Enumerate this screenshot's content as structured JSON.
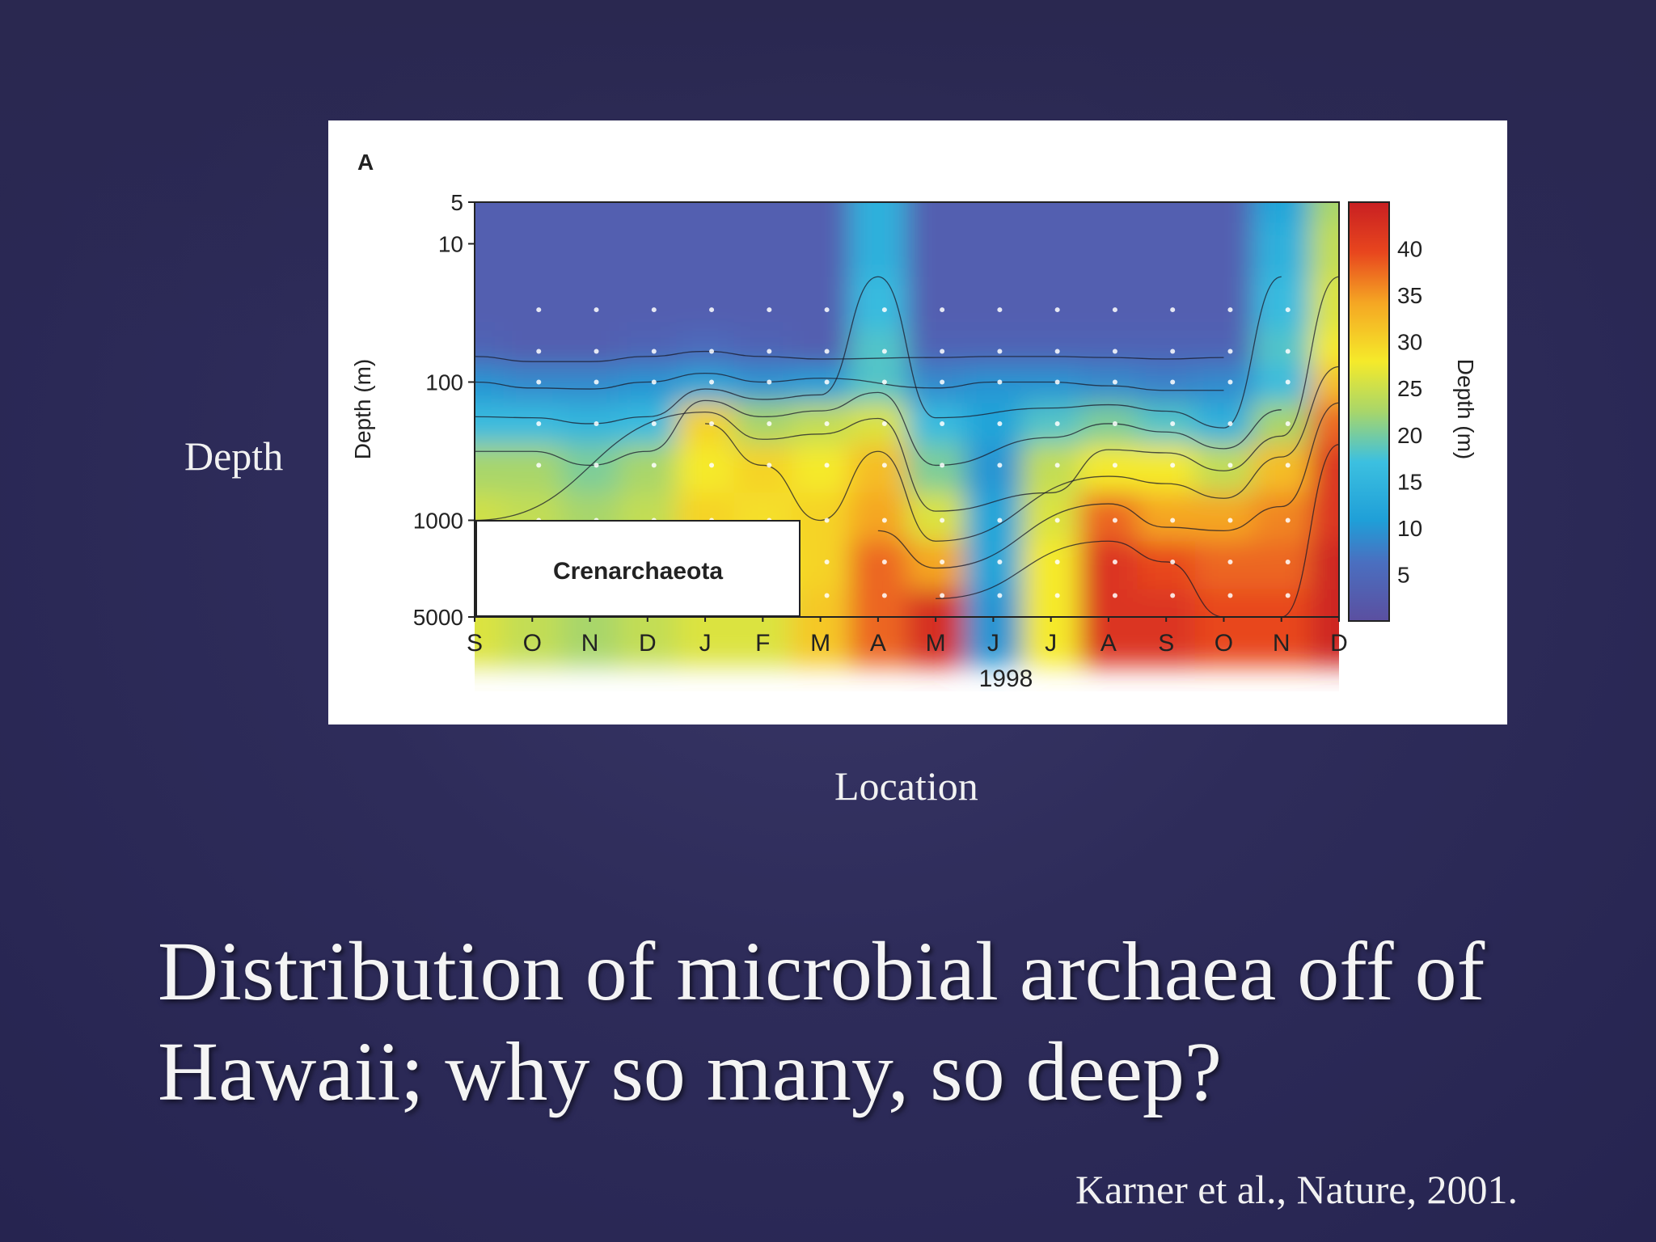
{
  "slide": {
    "title": "Distribution of microbial archaea off of Hawaii; why so many, so deep?",
    "y_annotation": "Depth",
    "x_annotation": "Location",
    "citation": "Karner et al., Nature, 2001."
  },
  "chart_data": {
    "type": "heatmap",
    "panel_label": "A",
    "inset_label": "Crenarchaeota",
    "xlabel": "1998",
    "ylabel": "Depth (m)",
    "colorbar_label": "Depth (m)",
    "x_ticks": [
      "S",
      "O",
      "N",
      "D",
      "J",
      "F",
      "M",
      "A",
      "M",
      "J",
      "J",
      "A",
      "S",
      "O",
      "N",
      "D"
    ],
    "y_ticks": [
      5,
      10,
      100,
      1000,
      5000
    ],
    "y_scale": "log",
    "y_range": [
      5,
      5000
    ],
    "colorbar_ticks": [
      5,
      10,
      15,
      20,
      25,
      30,
      35,
      40
    ],
    "colorbar_range": [
      0,
      45
    ],
    "colors": {
      "low": "#5b4fa0",
      "mid_low": "#1f9fd8",
      "mid": "#27b8e8",
      "mid_high": "#f5ea2a",
      "high": "#f08a24",
      "max": "#c81f22"
    },
    "depth_rows": [
      5,
      10,
      30,
      60,
      100,
      200,
      400,
      1000,
      2000,
      5000
    ],
    "grid_values": [
      [
        3,
        3,
        3,
        3,
        3,
        3,
        3,
        14,
        3,
        3,
        3,
        3,
        3,
        3,
        12,
        22
      ],
      [
        3,
        3,
        3,
        3,
        3,
        3,
        3,
        14,
        3,
        3,
        3,
        3,
        3,
        3,
        14,
        24
      ],
      [
        3,
        3,
        3,
        3,
        3,
        3,
        3,
        16,
        3,
        3,
        3,
        3,
        3,
        3,
        16,
        26
      ],
      [
        4,
        3,
        3,
        4,
        5,
        4,
        3,
        18,
        4,
        4,
        4,
        4,
        4,
        4,
        18,
        28
      ],
      [
        10,
        9,
        9,
        10,
        12,
        10,
        11,
        18,
        9,
        10,
        10,
        9,
        8,
        9,
        16,
        32
      ],
      [
        16,
        16,
        15,
        16,
        30,
        22,
        24,
        26,
        16,
        12,
        18,
        20,
        18,
        14,
        22,
        38
      ],
      [
        22,
        22,
        20,
        22,
        28,
        30,
        28,
        32,
        20,
        10,
        24,
        28,
        28,
        24,
        32,
        42
      ],
      [
        25,
        24,
        22,
        24,
        30,
        29,
        30,
        34,
        26,
        12,
        26,
        38,
        34,
        34,
        36,
        42
      ],
      [
        26,
        24,
        22,
        24,
        28,
        28,
        30,
        38,
        34,
        12,
        28,
        42,
        40,
        38,
        38,
        44
      ],
      [
        26,
        24,
        22,
        24,
        26,
        26,
        31,
        38,
        43,
        10,
        28,
        42,
        42,
        40,
        40,
        44
      ]
    ]
  }
}
